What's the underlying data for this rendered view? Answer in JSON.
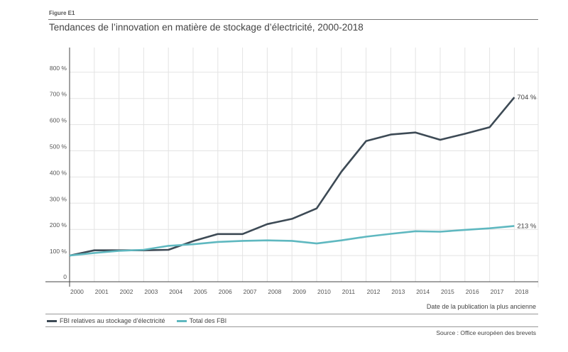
{
  "figure_label": "Figure E1",
  "chart_data": {
    "type": "line",
    "title": "Tendances de l’innovation en matière de stockage d’électricité, 2000-2018",
    "xlabel": "Date de la publication la plus ancienne",
    "ylabel": "",
    "x": [
      2000,
      2001,
      2002,
      2003,
      2004,
      2005,
      2006,
      2007,
      2008,
      2009,
      2010,
      2011,
      2012,
      2013,
      2014,
      2015,
      2016,
      2017,
      2018
    ],
    "ylim": [
      0,
      900
    ],
    "yticks": [
      0,
      100,
      200,
      300,
      400,
      500,
      600,
      700,
      800
    ],
    "ytick_labels": [
      "0",
      "100 %",
      "200 %",
      "300 %",
      "400 %",
      "500 %",
      "600 %",
      "700 %",
      "800 %"
    ],
    "grid": true,
    "legend_position": "bottom-left",
    "series": [
      {
        "name": "FBI relatives au stockage d’électricité",
        "color": "#3d4a55",
        "values": [
          100,
          120,
          120,
          120,
          122,
          155,
          182,
          182,
          220,
          240,
          280,
          420,
          537,
          562,
          570,
          542,
          565,
          590,
          704
        ],
        "end_label": "704 %"
      },
      {
        "name": "Total des FBI",
        "color": "#5fb8c0",
        "values": [
          100,
          110,
          118,
          122,
          137,
          143,
          152,
          156,
          158,
          156,
          146,
          158,
          172,
          183,
          193,
          191,
          198,
          204,
          213
        ],
        "end_label": "213 %"
      }
    ]
  },
  "source": "Source : Office européen des brevets"
}
